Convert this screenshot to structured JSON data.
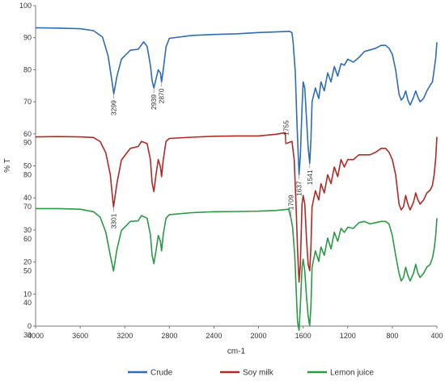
{
  "chart_data": {
    "type": "line",
    "title": "",
    "xlabel": "cm-1",
    "ylabel": "% T",
    "xlim": [
      4000,
      400
    ],
    "x_reversed": true,
    "ylim": [
      0,
      100
    ],
    "x_ticks": [
      4000,
      3600,
      3200,
      2800,
      2400,
      2000,
      1600,
      1200,
      800,
      400
    ],
    "y_ticks": [
      0,
      10,
      20,
      30,
      40,
      50,
      60,
      70,
      80,
      90,
      100
    ],
    "stack_ticks": [
      "90",
      "80",
      "70",
      "60",
      "50",
      "40",
      "30"
    ],
    "grid": false,
    "legend": "bottom",
    "series": [
      {
        "name": "Crude",
        "color": "#2e6db4",
        "points": [
          [
            4000,
            93.1
          ],
          [
            3800,
            93.0
          ],
          [
            3600,
            92.8
          ],
          [
            3480,
            92.2
          ],
          [
            3400,
            90.2
          ],
          [
            3350,
            84.3
          ],
          [
            3320,
            77.6
          ],
          [
            3299,
            72.5
          ],
          [
            3270,
            78.0
          ],
          [
            3230,
            83.3
          ],
          [
            3150,
            86.1
          ],
          [
            3080,
            86.4
          ],
          [
            3030,
            88.7
          ],
          [
            3000,
            87.3
          ],
          [
            2970,
            81.4
          ],
          [
            2955,
            76.6
          ],
          [
            2939,
            74.3
          ],
          [
            2920,
            77.1
          ],
          [
            2900,
            80.0
          ],
          [
            2880,
            79.0
          ],
          [
            2870,
            76.2
          ],
          [
            2855,
            80.0
          ],
          [
            2830,
            87.1
          ],
          [
            2800,
            89.8
          ],
          [
            2600,
            90.7
          ],
          [
            2400,
            91.0
          ],
          [
            2200,
            91.2
          ],
          [
            2000,
            91.6
          ],
          [
            1850,
            91.8
          ],
          [
            1720,
            92.0
          ],
          [
            1700,
            91.5
          ],
          [
            1690,
            88.6
          ],
          [
            1670,
            79.0
          ],
          [
            1655,
            62.9
          ],
          [
            1637,
            47.3
          ],
          [
            1625,
            53.0
          ],
          [
            1610,
            68.1
          ],
          [
            1600,
            76.2
          ],
          [
            1585,
            74.3
          ],
          [
            1570,
            64.8
          ],
          [
            1555,
            55.7
          ],
          [
            1541,
            50.8
          ],
          [
            1530,
            58.1
          ],
          [
            1520,
            70.0
          ],
          [
            1490,
            74.3
          ],
          [
            1460,
            71.0
          ],
          [
            1440,
            76.2
          ],
          [
            1410,
            73.4
          ],
          [
            1380,
            79.0
          ],
          [
            1350,
            76.2
          ],
          [
            1320,
            81.0
          ],
          [
            1290,
            78.0
          ],
          [
            1260,
            81.9
          ],
          [
            1230,
            81.4
          ],
          [
            1200,
            83.3
          ],
          [
            1150,
            82.4
          ],
          [
            1100,
            83.8
          ],
          [
            1050,
            85.7
          ],
          [
            1000,
            86.2
          ],
          [
            950,
            86.7
          ],
          [
            900,
            87.6
          ],
          [
            860,
            87.6
          ],
          [
            830,
            86.7
          ],
          [
            800,
            84.8
          ],
          [
            770,
            80.0
          ],
          [
            740,
            72.4
          ],
          [
            720,
            70.5
          ],
          [
            700,
            71.4
          ],
          [
            680,
            73.4
          ],
          [
            660,
            70.5
          ],
          [
            640,
            69.0
          ],
          [
            610,
            71.4
          ],
          [
            590,
            73.4
          ],
          [
            570,
            71.4
          ],
          [
            550,
            70.0
          ],
          [
            520,
            71.0
          ],
          [
            490,
            73.4
          ],
          [
            460,
            75.2
          ],
          [
            440,
            76.2
          ],
          [
            425,
            80.0
          ],
          [
            410,
            83.8
          ],
          [
            400,
            88.6
          ]
        ]
      },
      {
        "name": "Soy milk",
        "color": "#b02a25",
        "points": [
          [
            4000,
            91.8
          ],
          [
            3800,
            91.9
          ],
          [
            3600,
            91.8
          ],
          [
            3480,
            91.6
          ],
          [
            3420,
            90.3
          ],
          [
            3370,
            86.8
          ],
          [
            3330,
            80.0
          ],
          [
            3301,
            69.9
          ],
          [
            3270,
            77.4
          ],
          [
            3230,
            84.6
          ],
          [
            3150,
            88.2
          ],
          [
            3080,
            88.8
          ],
          [
            3050,
            90.4
          ],
          [
            3000,
            89.7
          ],
          [
            2970,
            84.7
          ],
          [
            2955,
            77.4
          ],
          [
            2939,
            74.7
          ],
          [
            2920,
            80.0
          ],
          [
            2900,
            84.7
          ],
          [
            2880,
            82.4
          ],
          [
            2870,
            79.4
          ],
          [
            2855,
            84.7
          ],
          [
            2830,
            90.4
          ],
          [
            2800,
            91.3
          ],
          [
            2600,
            91.7
          ],
          [
            2400,
            92.0
          ],
          [
            2200,
            92.1
          ],
          [
            2000,
            92.1
          ],
          [
            1850,
            92.6
          ],
          [
            1760,
            93.1
          ],
          [
            1755,
            89.7
          ],
          [
            1700,
            90.4
          ],
          [
            1680,
            84.7
          ],
          [
            1665,
            72.0
          ],
          [
            1650,
            56.3
          ],
          [
            1637,
            46.5
          ],
          [
            1625,
            52.0
          ],
          [
            1610,
            70.8
          ],
          [
            1600,
            73.5
          ],
          [
            1585,
            70.8
          ],
          [
            1570,
            60.0
          ],
          [
            1555,
            52.0
          ],
          [
            1541,
            50.0
          ],
          [
            1530,
            57.5
          ],
          [
            1520,
            70.0
          ],
          [
            1490,
            75.0
          ],
          [
            1460,
            72.1
          ],
          [
            1440,
            77.2
          ],
          [
            1410,
            74.3
          ],
          [
            1380,
            80.0
          ],
          [
            1350,
            77.2
          ],
          [
            1320,
            82.4
          ],
          [
            1290,
            79.4
          ],
          [
            1260,
            84.7
          ],
          [
            1230,
            82.4
          ],
          [
            1200,
            84.7
          ],
          [
            1150,
            84.7
          ],
          [
            1100,
            86.2
          ],
          [
            1000,
            86.2
          ],
          [
            950,
            87.0
          ],
          [
            900,
            88.2
          ],
          [
            860,
            88.2
          ],
          [
            830,
            87.0
          ],
          [
            800,
            84.7
          ],
          [
            770,
            80.0
          ],
          [
            740,
            70.8
          ],
          [
            720,
            69.0
          ],
          [
            700,
            70.0
          ],
          [
            680,
            73.5
          ],
          [
            660,
            70.8
          ],
          [
            640,
            69.0
          ],
          [
            610,
            71.4
          ],
          [
            590,
            74.3
          ],
          [
            570,
            72.1
          ],
          [
            550,
            70.8
          ],
          [
            520,
            72.1
          ],
          [
            490,
            74.3
          ],
          [
            460,
            75.2
          ],
          [
            440,
            76.7
          ],
          [
            425,
            80.0
          ],
          [
            410,
            85.4
          ],
          [
            400,
            91.8
          ]
        ]
      },
      {
        "name": "Lemon juice",
        "color": "#2a9a45",
        "points": [
          [
            4000,
            92.6
          ],
          [
            3800,
            92.6
          ],
          [
            3600,
            92.4
          ],
          [
            3480,
            91.6
          ],
          [
            3420,
            89.9
          ],
          [
            3370,
            85.2
          ],
          [
            3330,
            78.0
          ],
          [
            3301,
            73.1
          ],
          [
            3270,
            80.0
          ],
          [
            3230,
            85.8
          ],
          [
            3150,
            88.6
          ],
          [
            3080,
            88.8
          ],
          [
            3050,
            90.4
          ],
          [
            3000,
            89.6
          ],
          [
            2970,
            84.4
          ],
          [
            2955,
            78.0
          ],
          [
            2939,
            75.4
          ],
          [
            2920,
            79.4
          ],
          [
            2900,
            84.2
          ],
          [
            2880,
            82.4
          ],
          [
            2870,
            79.4
          ],
          [
            2855,
            84.6
          ],
          [
            2830,
            89.6
          ],
          [
            2800,
            90.7
          ],
          [
            2600,
            91.3
          ],
          [
            2400,
            91.6
          ],
          [
            2200,
            91.7
          ],
          [
            2000,
            91.8
          ],
          [
            1850,
            92.0
          ],
          [
            1730,
            92.4
          ],
          [
            1709,
            89.6
          ],
          [
            1695,
            86.8
          ],
          [
            1675,
            78.0
          ],
          [
            1660,
            65.2
          ],
          [
            1650,
            57.2
          ],
          [
            1637,
            54.6
          ],
          [
            1625,
            62.0
          ],
          [
            1610,
            74.3
          ],
          [
            1600,
            76.8
          ],
          [
            1585,
            73.1
          ],
          [
            1570,
            65.2
          ],
          [
            1555,
            59.0
          ],
          [
            1541,
            56.0
          ],
          [
            1530,
            62.0
          ],
          [
            1520,
            74.3
          ],
          [
            1490,
            79.4
          ],
          [
            1460,
            76.1
          ],
          [
            1440,
            80.6
          ],
          [
            1410,
            78.0
          ],
          [
            1380,
            83.4
          ],
          [
            1350,
            80.0
          ],
          [
            1320,
            85.2
          ],
          [
            1290,
            82.4
          ],
          [
            1260,
            86.4
          ],
          [
            1230,
            85.2
          ],
          [
            1200,
            86.8
          ],
          [
            1150,
            86.4
          ],
          [
            1100,
            88.2
          ],
          [
            1050,
            88.6
          ],
          [
            1000,
            87.8
          ],
          [
            950,
            88.2
          ],
          [
            900,
            88.6
          ],
          [
            860,
            88.6
          ],
          [
            830,
            87.8
          ],
          [
            800,
            84.2
          ],
          [
            770,
            78.0
          ],
          [
            740,
            72.4
          ],
          [
            720,
            70.0
          ],
          [
            700,
            71.1
          ],
          [
            680,
            74.3
          ],
          [
            660,
            71.7
          ],
          [
            640,
            70.0
          ],
          [
            610,
            72.4
          ],
          [
            590,
            75.2
          ],
          [
            570,
            72.4
          ],
          [
            550,
            71.1
          ],
          [
            520,
            72.4
          ],
          [
            490,
            74.3
          ],
          [
            460,
            75.2
          ],
          [
            440,
            77.2
          ],
          [
            425,
            80.0
          ],
          [
            410,
            84.4
          ],
          [
            400,
            89.6
          ]
        ]
      }
    ],
    "annotations": [
      {
        "text": "3299",
        "x": 3299
      },
      {
        "text": "2939",
        "x": 2939
      },
      {
        "text": "2870",
        "x": 2870
      },
      {
        "text": "1637",
        "x": 1637
      },
      {
        "text": "1541",
        "x": 1541
      },
      {
        "text": "3301",
        "x": 3301
      },
      {
        "text": "1755",
        "x": 1755
      },
      {
        "text": "1709",
        "x": 1709
      }
    ]
  }
}
